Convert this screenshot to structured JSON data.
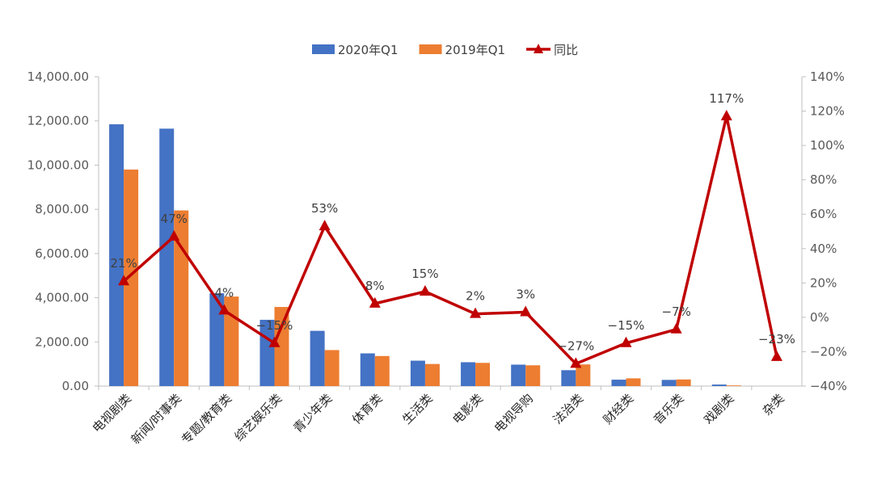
{
  "chart_data": {
    "type": "bar",
    "title": "",
    "categories": [
      "电视剧类",
      "新闻/时事类",
      "专题/教育类",
      "综艺娱乐类",
      "青少年类",
      "体育类",
      "生活类",
      "电影类",
      "电视导购",
      "法治类",
      "财经类",
      "音乐类",
      "戏剧类",
      "杂类"
    ],
    "series": [
      {
        "name": "2020年Q1",
        "type": "bar",
        "axis": "left",
        "color": "#4472C4",
        "values": [
          11850,
          11650,
          4200,
          3000,
          2500,
          1480,
          1150,
          1080,
          970,
          720,
          290,
          280,
          70,
          0
        ]
      },
      {
        "name": "2019年Q1",
        "type": "bar",
        "axis": "left",
        "color": "#ED7D31",
        "values": [
          9800,
          7950,
          4050,
          3580,
          1630,
          1360,
          1000,
          1050,
          940,
          980,
          350,
          300,
          30,
          0
        ]
      },
      {
        "name": "同比",
        "type": "line",
        "axis": "right",
        "color": "#C00000",
        "values": [
          21,
          47,
          4,
          -15,
          53,
          8,
          15,
          2,
          3,
          -27,
          -15,
          -7,
          117,
          -23
        ],
        "labels": [
          "21%",
          "47%",
          "4%",
          "−15%",
          "53%",
          "8%",
          "15%",
          "2%",
          "3%",
          "−27%",
          "−15%",
          "−7%",
          "117%",
          "−23%"
        ]
      }
    ],
    "y_left": {
      "range": [
        0,
        14000
      ],
      "ticks": [
        0,
        2000,
        4000,
        6000,
        8000,
        10000,
        12000,
        14000
      ],
      "tick_labels": [
        "0.00",
        "2,000.00",
        "4,000.00",
        "6,000.00",
        "8,000.00",
        "10,000.00",
        "12,000.00",
        "14,000.00"
      ]
    },
    "y_right": {
      "range": [
        -40,
        140
      ],
      "ticks": [
        -40,
        -20,
        0,
        20,
        40,
        60,
        80,
        100,
        120,
        140
      ],
      "tick_labels": [
        "−40%",
        "−20%",
        "0%",
        "20%",
        "40%",
        "60%",
        "80%",
        "100%",
        "120%",
        "140%"
      ]
    },
    "legend_position": "top-center",
    "grid": false
  }
}
